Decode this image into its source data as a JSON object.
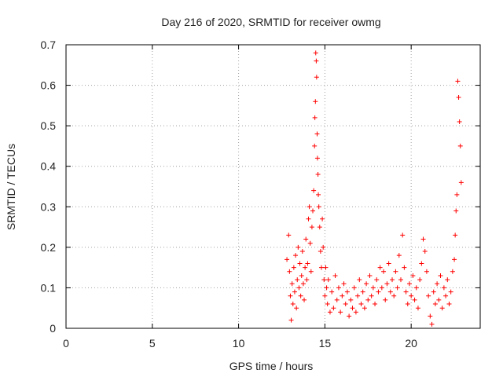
{
  "chart_data": {
    "type": "scatter",
    "title": "Day 216 of 2020, SRMTID for receiver owmg",
    "xlabel": "GPS time / hours",
    "ylabel": "SRMTID / TECUs",
    "xlim": [
      0,
      24
    ],
    "ylim": [
      0,
      0.7
    ],
    "xticks": [
      "0",
      "5",
      "10",
      "15",
      "20"
    ],
    "xtick_values": [
      0,
      5,
      10,
      15,
      20
    ],
    "yticks": [
      "0",
      "0.1",
      "0.2",
      "0.3",
      "0.4",
      "0.5",
      "0.6",
      "0.7"
    ],
    "ytick_values": [
      0,
      0.1,
      0.2,
      0.3,
      0.4,
      0.5,
      0.6,
      0.7
    ],
    "grid": true,
    "marker": "+",
    "color": "#ff0000",
    "series": [
      {
        "name": "SRMTID",
        "x": [
          12.8,
          12.9,
          12.95,
          13.0,
          13.05,
          13.1,
          13.15,
          13.2,
          13.25,
          13.3,
          13.35,
          13.4,
          13.45,
          13.5,
          13.55,
          13.6,
          13.65,
          13.7,
          13.75,
          13.8,
          13.85,
          13.9,
          13.95,
          14.0,
          14.05,
          14.1,
          14.15,
          14.2,
          14.25,
          14.3,
          14.35,
          14.4,
          14.42,
          14.45,
          14.47,
          14.5,
          14.52,
          14.55,
          14.57,
          14.6,
          14.62,
          14.65,
          14.7,
          14.75,
          14.8,
          14.85,
          14.9,
          14.95,
          15.0,
          15.05,
          15.1,
          15.15,
          15.2,
          15.3,
          15.4,
          15.5,
          15.6,
          15.7,
          15.8,
          15.9,
          16.0,
          16.1,
          16.2,
          16.3,
          16.4,
          16.5,
          16.6,
          16.7,
          16.8,
          16.9,
          17.0,
          17.1,
          17.2,
          17.3,
          17.4,
          17.5,
          17.6,
          17.7,
          17.8,
          17.9,
          18.0,
          18.1,
          18.2,
          18.3,
          18.4,
          18.5,
          18.6,
          18.7,
          18.8,
          18.9,
          19.0,
          19.1,
          19.2,
          19.3,
          19.4,
          19.5,
          19.6,
          19.7,
          19.8,
          19.9,
          20.0,
          20.1,
          20.2,
          20.3,
          20.4,
          20.5,
          20.6,
          20.7,
          20.8,
          20.9,
          21.0,
          21.1,
          21.2,
          21.3,
          21.4,
          21.5,
          21.6,
          21.7,
          21.8,
          21.9,
          22.0,
          22.1,
          22.2,
          22.3,
          22.4,
          22.5,
          22.55,
          22.6,
          22.65,
          22.7,
          22.75,
          22.8,
          22.85,
          22.9
        ],
        "y": [
          0.17,
          0.23,
          0.14,
          0.08,
          0.02,
          0.11,
          0.06,
          0.15,
          0.09,
          0.18,
          0.05,
          0.12,
          0.2,
          0.1,
          0.16,
          0.08,
          0.13,
          0.19,
          0.11,
          0.07,
          0.15,
          0.22,
          0.12,
          0.16,
          0.27,
          0.3,
          0.21,
          0.14,
          0.25,
          0.29,
          0.34,
          0.45,
          0.52,
          0.56,
          0.68,
          0.66,
          0.62,
          0.48,
          0.42,
          0.38,
          0.33,
          0.3,
          0.25,
          0.19,
          0.15,
          0.27,
          0.2,
          0.12,
          0.08,
          0.15,
          0.1,
          0.06,
          0.12,
          0.04,
          0.09,
          0.05,
          0.13,
          0.07,
          0.1,
          0.04,
          0.08,
          0.11,
          0.06,
          0.09,
          0.03,
          0.07,
          0.05,
          0.1,
          0.04,
          0.08,
          0.12,
          0.06,
          0.09,
          0.05,
          0.11,
          0.07,
          0.13,
          0.08,
          0.1,
          0.06,
          0.12,
          0.09,
          0.15,
          0.1,
          0.14,
          0.07,
          0.11,
          0.16,
          0.09,
          0.12,
          0.08,
          0.14,
          0.1,
          0.18,
          0.12,
          0.23,
          0.15,
          0.09,
          0.06,
          0.11,
          0.08,
          0.13,
          0.07,
          0.1,
          0.05,
          0.12,
          0.16,
          0.22,
          0.19,
          0.14,
          0.08,
          0.03,
          0.01,
          0.09,
          0.06,
          0.11,
          0.07,
          0.13,
          0.05,
          0.1,
          0.08,
          0.12,
          0.06,
          0.09,
          0.14,
          0.17,
          0.23,
          0.29,
          0.33,
          0.61,
          0.57,
          0.51,
          0.45,
          0.36
        ]
      }
    ]
  }
}
